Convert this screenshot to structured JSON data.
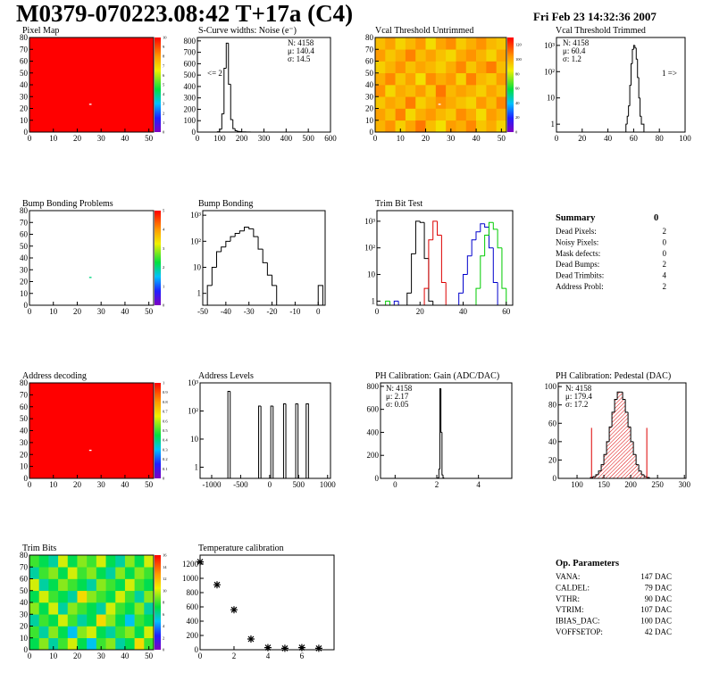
{
  "header": {
    "title": "M0379-070223.08:42 T+17a (C4)",
    "date": "Fri Feb 23 14:32:36 2007"
  },
  "chart_data": [
    {
      "type": "heatmap",
      "title": "Pixel Map",
      "xlim": [
        0,
        52
      ],
      "ylim": [
        0,
        80
      ],
      "xticks": [
        0,
        10,
        20,
        30,
        40,
        50
      ],
      "yticks": [
        0,
        10,
        20,
        30,
        40,
        50,
        60,
        70,
        80
      ],
      "zlim": [
        0,
        10
      ],
      "zticks": [
        0,
        1,
        2,
        3,
        4,
        5,
        6,
        7,
        8,
        9,
        10
      ],
      "values": [
        [
          10
        ]
      ],
      "points": [
        {
          "x": 25,
          "y": 23,
          "value": 0
        }
      ]
    },
    {
      "type": "histogram",
      "title": "S-Curve widths: Noise (e⁻)",
      "xlim": [
        0,
        600
      ],
      "ylim": [
        0,
        830
      ],
      "xticks": [
        0,
        100,
        200,
        300,
        400,
        500,
        600
      ],
      "yticks": [
        0,
        100,
        200,
        300,
        400,
        500,
        600,
        700,
        800
      ],
      "bins": [
        80,
        90,
        100,
        110,
        120,
        130,
        140,
        150,
        160,
        170,
        180,
        190,
        200,
        210,
        220,
        230,
        240,
        250,
        260
      ],
      "values": [
        0,
        3,
        25,
        160,
        560,
        780,
        420,
        110,
        30,
        12,
        6,
        4,
        2,
        2,
        1,
        1,
        0,
        0
      ],
      "color": "#000000",
      "stats": [
        "N: 4158",
        "μ: 140.4",
        "σ: 14.5"
      ],
      "annotation": "<= 2"
    },
    {
      "type": "heatmap",
      "title": "Vcal Threshold Untrimmed",
      "xlim": [
        0,
        52
      ],
      "ylim": [
        0,
        80
      ],
      "xticks": [
        0,
        10,
        20,
        30,
        40,
        50
      ],
      "yticks": [
        0,
        10,
        20,
        30,
        40,
        50,
        60,
        70,
        80
      ],
      "zlim": [
        0,
        130
      ],
      "zticks": [
        0,
        20,
        40,
        60,
        80,
        100,
        120
      ],
      "values": [
        [
          98,
          105,
          92,
          101,
          110,
          96,
          88,
          103,
          99,
          107,
          94,
          100,
          91
        ],
        [
          102,
          95,
          108,
          90,
          99,
          104,
          97,
          93,
          106,
          100,
          89,
          103,
          98
        ],
        [
          94,
          101,
          97,
          109,
          92,
          98,
          105,
          100,
          95,
          91,
          104,
          96,
          107
        ],
        [
          105,
          90,
          100,
          96,
          103,
          93,
          110,
          97,
          102,
          98,
          92,
          101,
          95
        ],
        [
          99,
          107,
          94,
          102,
          88,
          106,
          99,
          104,
          91,
          108,
          97,
          93,
          103
        ],
        [
          92,
          98,
          105,
          95,
          101,
          97,
          92,
          99,
          107,
          94,
          102,
          109,
          96
        ],
        [
          103,
          94,
          99,
          108,
          96,
          102,
          95,
          90,
          100,
          105,
          98,
          91,
          101
        ],
        [
          96,
          102,
          91,
          97,
          104,
          89,
          101,
          106,
          93,
          99,
          105,
          97,
          94
        ]
      ],
      "points": [
        {
          "x": 25,
          "y": 23,
          "value": 0
        }
      ]
    },
    {
      "type": "histogram",
      "title": "Vcal Threshold Trimmed",
      "log_y": true,
      "xlim": [
        0,
        100
      ],
      "ylim": [
        0.5,
        2000
      ],
      "xticks": [
        0,
        20,
        40,
        60,
        80,
        100
      ],
      "yticks": [
        1,
        10,
        {
          "value": 100,
          "label": "10²"
        },
        {
          "value": 1000,
          "label": "10³"
        }
      ],
      "bins": [
        54,
        55,
        56,
        57,
        58,
        59,
        60,
        61,
        62,
        63,
        64,
        65,
        66,
        67,
        68
      ],
      "values": [
        1,
        2,
        5,
        30,
        200,
        700,
        1000,
        800,
        300,
        60,
        10,
        2,
        1,
        1
      ],
      "color": "#000000",
      "stats": [
        "N: 4158",
        "μ: 60.4",
        "σ: 1.2"
      ],
      "annotation": "1 =>"
    },
    {
      "type": "heatmap",
      "title": "Bump Bonding Problems",
      "xlim": [
        0,
        52
      ],
      "ylim": [
        0,
        80
      ],
      "xticks": [
        0,
        10,
        20,
        30,
        40,
        50
      ],
      "yticks": [
        0,
        10,
        20,
        30,
        40,
        50,
        60,
        70,
        80
      ],
      "zlim": [
        0,
        5
      ],
      "zticks": [
        0,
        1,
        2,
        3,
        4,
        5
      ],
      "points": [
        {
          "x": 25,
          "y": 23,
          "value": 2
        }
      ]
    },
    {
      "type": "histogram",
      "title": "Bump Bonding",
      "log_y": true,
      "xlim": [
        -50,
        3
      ],
      "ylim": [
        0.35,
        1500
      ],
      "xticks": [
        -50,
        -40,
        -30,
        -20,
        -10,
        0
      ],
      "yticks": [
        1,
        10,
        {
          "value": 100,
          "label": "10²"
        },
        {
          "value": 1000,
          "label": "10³"
        }
      ],
      "bins": [
        -50,
        -48,
        -46,
        -44,
        -42,
        -40,
        -38,
        -36,
        -34,
        -32,
        -30,
        -28,
        -26,
        -24,
        -22,
        -20,
        -18,
        -16,
        -14,
        -12,
        -10,
        -8,
        -6,
        -4,
        -2,
        0,
        2
      ],
      "values": [
        0,
        2,
        10,
        40,
        60,
        100,
        150,
        200,
        250,
        350,
        300,
        150,
        50,
        15,
        5,
        2,
        0,
        0,
        0,
        0,
        0,
        0,
        0,
        0,
        0,
        2
      ],
      "color": "#000000"
    },
    {
      "type": "histogram",
      "title": "Trim Bit Test",
      "log_y": true,
      "xlim": [
        0,
        63
      ],
      "ylim": [
        0.7,
        2500
      ],
      "xticks": [
        0,
        20,
        40,
        60
      ],
      "yticks": [
        1,
        10,
        {
          "value": 100,
          "label": "10²"
        },
        {
          "value": 1000,
          "label": "10³"
        }
      ],
      "bins": [
        0,
        2,
        4,
        6,
        8,
        10,
        12,
        14,
        16,
        18,
        20,
        22,
        24,
        26,
        28,
        30,
        32,
        34,
        36,
        38,
        40,
        42,
        44,
        46,
        48,
        50,
        52,
        54,
        56,
        58,
        60,
        62
      ],
      "series": [
        {
          "color": "#000000",
          "values": [
            0,
            0,
            0,
            0,
            0,
            0,
            0,
            2,
            60,
            1000,
            900,
            40,
            1,
            0,
            0,
            0,
            0,
            0,
            0,
            0,
            0,
            0,
            0,
            0,
            0,
            0,
            0,
            0,
            0,
            0,
            0
          ]
        },
        {
          "color": "#dd0000",
          "values": [
            0,
            0,
            0,
            0,
            0,
            0,
            0,
            0,
            0,
            0,
            0,
            3,
            200,
            1000,
            300,
            5,
            0,
            0,
            0,
            0,
            0,
            0,
            0,
            0,
            0,
            0,
            0,
            0,
            0,
            0,
            0
          ]
        },
        {
          "color": "#0000cc",
          "values": [
            0,
            0,
            0,
            0,
            1,
            0,
            0,
            0,
            0,
            0,
            0,
            0,
            0,
            0,
            0,
            0,
            0,
            0,
            0,
            2,
            10,
            50,
            200,
            400,
            800,
            600,
            100,
            5,
            0,
            0,
            0
          ]
        },
        {
          "color": "#00cc00",
          "values": [
            0,
            0,
            1,
            0,
            0,
            0,
            0,
            0,
            0,
            0,
            0,
            0,
            0,
            0,
            0,
            0,
            0,
            0,
            0,
            0,
            0,
            0,
            0,
            3,
            50,
            300,
            900,
            500,
            100,
            3,
            0
          ]
        }
      ]
    },
    {
      "type": "heatmap",
      "title": "Address decoding",
      "xlim": [
        0,
        52
      ],
      "ylim": [
        0,
        80
      ],
      "xticks": [
        0,
        10,
        20,
        30,
        40,
        50
      ],
      "yticks": [
        0,
        10,
        20,
        30,
        40,
        50,
        60,
        70,
        80
      ],
      "zlim": [
        0,
        1
      ],
      "zticks": [
        0,
        0.1,
        0.2,
        0.3,
        0.4,
        0.5,
        0.6,
        0.7,
        0.8,
        0.9,
        1
      ],
      "values": [
        [
          1
        ]
      ],
      "points": [
        {
          "x": 25,
          "y": 23,
          "value": 0
        }
      ]
    },
    {
      "type": "histogram",
      "title": "Address Levels",
      "log_y": true,
      "xlim": [
        -1200,
        1050
      ],
      "ylim": [
        0.4,
        1000
      ],
      "xticks": [
        -1000,
        -500,
        0,
        500,
        1000
      ],
      "yticks": [
        1,
        10,
        {
          "value": 100,
          "label": "10²"
        },
        {
          "value": 1000,
          "label": "10³"
        }
      ],
      "bins": [
        -720,
        -680,
        -190,
        -150,
        20,
        60,
        240,
        280,
        450,
        490,
        630,
        670
      ],
      "values": [
        500,
        0,
        150,
        0,
        150,
        0,
        180,
        0,
        180,
        0,
        180
      ],
      "color": "#000000"
    },
    {
      "type": "histogram",
      "title": "PH Calibration: Gain (ADC/DAC)",
      "xlim": [
        -0.7,
        5.6
      ],
      "ylim": [
        0,
        830
      ],
      "xticks": [
        0,
        2,
        4
      ],
      "yticks": [
        0,
        200,
        400,
        600,
        800
      ],
      "bins": [
        2,
        2.05,
        2.1,
        2.15,
        2.2,
        2.25,
        2.3,
        2.35,
        2.4
      ],
      "values": [
        0,
        5,
        80,
        780,
        400,
        30,
        5,
        0
      ],
      "color": "#000000",
      "stats": [
        "N: 4158",
        "μ: 2.17",
        "σ: 0.05"
      ]
    },
    {
      "type": "histogram",
      "title": "PH Calibration: Pedestal (DAC)",
      "xlim": [
        65,
        303
      ],
      "ylim": [
        0,
        104
      ],
      "xticks": [
        100,
        150,
        200,
        250,
        300
      ],
      "yticks": [
        0,
        20,
        40,
        60,
        80,
        100
      ],
      "bins": [
        110,
        115,
        120,
        125,
        130,
        135,
        140,
        145,
        150,
        155,
        160,
        165,
        170,
        175,
        180,
        185,
        190,
        195,
        200,
        205,
        210,
        215,
        220,
        225,
        230,
        235,
        240,
        245,
        250
      ],
      "values": [
        0,
        0,
        0,
        1,
        2,
        4,
        8,
        15,
        26,
        40,
        56,
        72,
        86,
        94,
        94,
        86,
        72,
        56,
        40,
        26,
        15,
        8,
        4,
        2,
        1,
        0,
        0,
        0
      ],
      "color": "#000000",
      "fill_color": "#dd0000",
      "markers": [
        {
          "x": 127,
          "y": 55
        },
        {
          "x": 230,
          "y": 55
        }
      ],
      "marker_color": "#dd0000",
      "stats": [
        "N: 4158",
        "μ: 179.4",
        "σ: 17.2"
      ],
      "stats_colors": [
        "#000000",
        "#dd0000",
        "#dd0000"
      ]
    },
    {
      "type": "heatmap",
      "title": "Trim Bits",
      "xlim": [
        0,
        52
      ],
      "ylim": [
        0,
        80
      ],
      "xticks": [
        0,
        10,
        20,
        30,
        40,
        50
      ],
      "yticks": [
        0,
        10,
        20,
        30,
        40,
        50,
        60,
        70,
        80
      ],
      "zlim": [
        0,
        16
      ],
      "zticks": [
        0,
        2,
        4,
        6,
        8,
        10,
        12,
        14,
        16
      ],
      "values": [
        [
          7,
          9,
          6,
          8,
          10,
          7,
          5,
          8,
          9,
          6,
          7,
          11,
          8
        ],
        [
          8,
          6,
          9,
          7,
          5,
          9,
          10,
          7,
          6,
          8,
          9,
          7,
          10
        ],
        [
          6,
          8,
          7,
          10,
          8,
          6,
          7,
          11,
          9,
          7,
          5,
          8,
          7
        ],
        [
          9,
          7,
          10,
          6,
          9,
          8,
          7,
          6,
          10,
          8,
          7,
          9,
          6
        ],
        [
          7,
          10,
          8,
          7,
          6,
          11,
          9,
          8,
          7,
          10,
          8,
          6,
          9
        ],
        [
          10,
          6,
          7,
          9,
          8,
          7,
          6,
          9,
          8,
          7,
          10,
          8,
          7
        ],
        [
          6,
          8,
          9,
          7,
          10,
          8,
          9,
          7,
          6,
          9,
          7,
          9,
          8
        ],
        [
          8,
          7,
          6,
          10,
          7,
          9,
          8,
          10,
          7,
          6,
          9,
          7,
          10
        ]
      ]
    },
    {
      "type": "scatter",
      "title": "Temperature calibration",
      "xlim": [
        0,
        7.9
      ],
      "ylim": [
        0,
        1325
      ],
      "xticks": [
        0,
        2,
        4,
        6
      ],
      "yticks": [
        0,
        200,
        400,
        600,
        800,
        1000,
        1200
      ],
      "x": [
        0,
        1,
        2,
        3,
        4,
        5,
        6,
        7
      ],
      "values": [
        1230,
        910,
        560,
        150,
        30,
        20,
        30,
        20
      ],
      "color": "#000000"
    }
  ],
  "summary": {
    "title": "Summary",
    "total": "0",
    "rows": [
      [
        "Dead Pixels:",
        "2"
      ],
      [
        "Noisy Pixels:",
        "0"
      ],
      [
        "Mask defects:",
        "0"
      ],
      [
        "Dead Bumps:",
        "2"
      ],
      [
        "Dead Trimbits:",
        "4"
      ],
      [
        "Address Probl:",
        "2"
      ]
    ]
  },
  "op_parameters": {
    "title": "Op. Parameters",
    "rows": [
      [
        "VANA:",
        "147 DAC"
      ],
      [
        "CALDEL:",
        "79 DAC"
      ],
      [
        "VTHR:",
        "90 DAC"
      ],
      [
        "VTRIM:",
        "107 DAC"
      ],
      [
        "IBIAS_DAC:",
        "100 DAC"
      ],
      [
        "VOFFSETOP:",
        "42 DAC"
      ]
    ]
  }
}
